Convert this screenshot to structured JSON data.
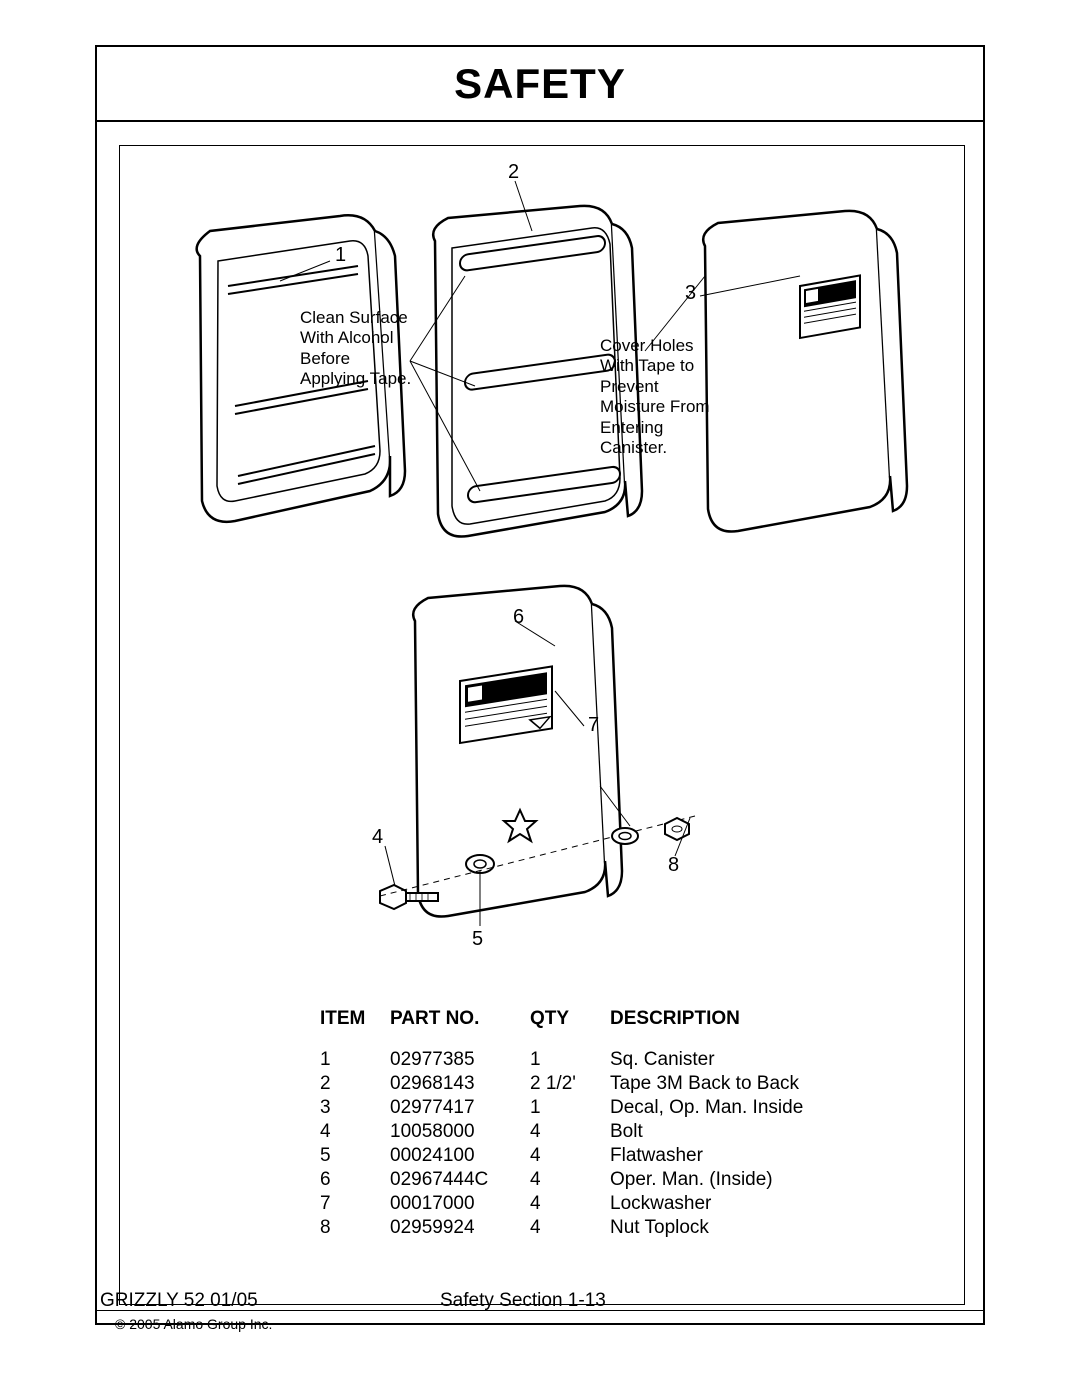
{
  "title": "SAFETY",
  "annotations": {
    "left_note": "Clean Surface With Alcohol Before Applying Tape.",
    "right_note": "Cover Holes With Tape to Prevent Moisture From Entering Canister."
  },
  "callouts": {
    "c1": "1",
    "c2": "2",
    "c3": "3",
    "c4": "4",
    "c5": "5",
    "c6": "6",
    "c7": "7",
    "c8": "8"
  },
  "table": {
    "headers": {
      "item": "ITEM",
      "part": "PART NO.",
      "qty": "QTY",
      "desc": "DESCRIPTION"
    },
    "rows": [
      {
        "item": "1",
        "part": "02977385",
        "qty": "1",
        "desc": "Sq. Canister"
      },
      {
        "item": "2",
        "part": "02968143",
        "qty": "2 1/2'",
        "desc": "Tape 3M Back to Back"
      },
      {
        "item": "3",
        "part": "02977417",
        "qty": "1",
        "desc": "Decal, Op. Man. Inside"
      },
      {
        "item": "4",
        "part": "10058000",
        "qty": "4",
        "desc": "Bolt"
      },
      {
        "item": "5",
        "part": "00024100",
        "qty": "4",
        "desc": "Flatwasher"
      },
      {
        "item": "6",
        "part": "02967444C",
        "qty": "4",
        "desc": "Oper. Man. (Inside)"
      },
      {
        "item": "7",
        "part": "00017000",
        "qty": "4",
        "desc": "Lockwasher"
      },
      {
        "item": "8",
        "part": "02959924",
        "qty": "4",
        "desc": "Nut Toplock"
      }
    ]
  },
  "footer": {
    "left": "GRIZZLY 52   01/05",
    "center": "Safety Section    1-13",
    "copyright": "© 2005 Alamo Group Inc."
  },
  "diagram": {
    "stroke": "#000000",
    "stroke_width": 2,
    "fill": "#ffffff"
  }
}
